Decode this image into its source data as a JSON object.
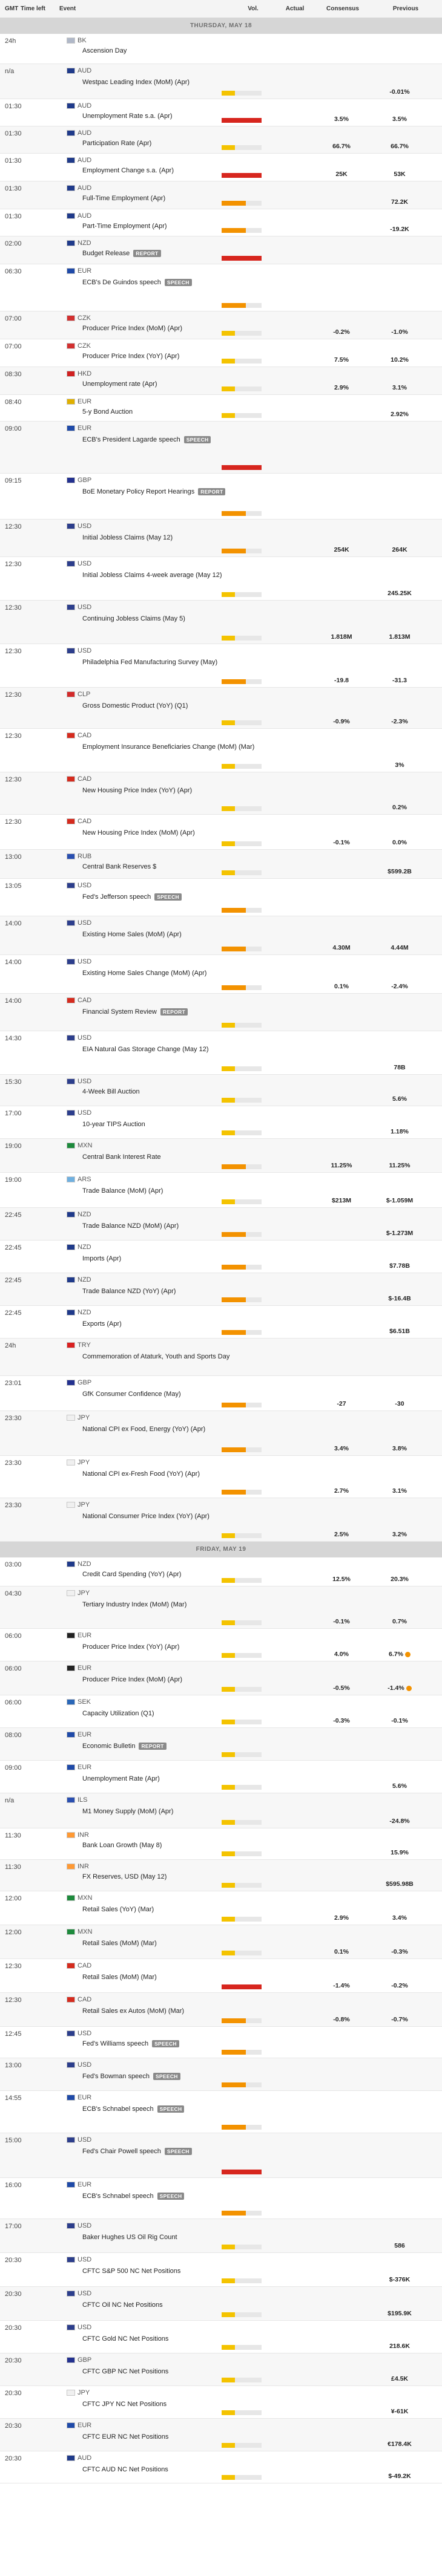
{
  "header": {
    "gmt": "GMT",
    "time_left": "Time left",
    "event": "Event",
    "vol": "Vol.",
    "actual": "Actual",
    "consensus": "Consensus",
    "previous": "Previous"
  },
  "rows": [
    {
      "type": "day",
      "label": "THURSDAY, MAY 18"
    },
    {
      "type": "event",
      "h": 50,
      "time": "24h",
      "cur": "BK",
      "flag": "#b0b8c8",
      "event": "Ascension Day",
      "vol": "none",
      "actual": "",
      "cons": "",
      "prev": ""
    },
    {
      "type": "event",
      "h": 58,
      "time": "n/a",
      "cur": "AUD",
      "flag": "#1f3a8a",
      "event": "Westpac Leading Index (MoM) (Apr)",
      "vol": "low",
      "actual": "",
      "cons": "",
      "prev": "-0.01%"
    },
    {
      "type": "event",
      "h": 45,
      "time": "01:30",
      "cur": "AUD",
      "flag": "#1f3a8a",
      "event": "Unemployment Rate s.a. (Apr)",
      "vol": "high",
      "actual": "",
      "cons": "3.5%",
      "prev": "3.5%"
    },
    {
      "type": "event",
      "h": 45,
      "time": "01:30",
      "cur": "AUD",
      "flag": "#1f3a8a",
      "event": "Participation Rate (Apr)",
      "vol": "low",
      "actual": "",
      "cons": "66.7%",
      "prev": "66.7%"
    },
    {
      "type": "event",
      "h": 46,
      "time": "01:30",
      "cur": "AUD",
      "flag": "#1f3a8a",
      "event": "Employment Change s.a. (Apr)",
      "vol": "high",
      "actual": "",
      "cons": "25K",
      "prev": "53K"
    },
    {
      "type": "event",
      "h": 46,
      "time": "01:30",
      "cur": "AUD",
      "flag": "#1f3a8a",
      "event": "Full-Time Employment (Apr)",
      "vol": "med",
      "actual": "",
      "cons": "",
      "prev": "72.2K"
    },
    {
      "type": "event",
      "h": 45,
      "time": "01:30",
      "cur": "AUD",
      "flag": "#1f3a8a",
      "event": "Part-Time Employment (Apr)",
      "vol": "med",
      "actual": "",
      "cons": "",
      "prev": "-19.2K"
    },
    {
      "type": "event",
      "h": 46,
      "time": "02:00",
      "cur": "NZD",
      "flag": "#1f3a8a",
      "event": "Budget Release",
      "badge": "REPORT",
      "vol": "high",
      "actual": "",
      "cons": "",
      "prev": ""
    },
    {
      "type": "event",
      "h": 78,
      "time": "06:30",
      "cur": "EUR",
      "flag": "#1f4aa8",
      "event": "ECB's De Guindos speech",
      "badge": "SPEECH",
      "vol": "med",
      "actual": "",
      "cons": "",
      "prev": ""
    },
    {
      "type": "event",
      "h": 46,
      "time": "07:00",
      "cur": "CZK",
      "flag": "#d23030",
      "event": "Producer Price Index (MoM) (Apr)",
      "vol": "low",
      "actual": "",
      "cons": "-0.2%",
      "prev": "-1.0%"
    },
    {
      "type": "event",
      "h": 46,
      "time": "07:00",
      "cur": "CZK",
      "flag": "#d23030",
      "event": "Producer Price Index (YoY) (Apr)",
      "vol": "low",
      "actual": "",
      "cons": "7.5%",
      "prev": "10.2%"
    },
    {
      "type": "event",
      "h": 46,
      "time": "08:30",
      "cur": "HKD",
      "flag": "#d02020",
      "event": "Unemployment rate (Apr)",
      "vol": "low",
      "actual": "",
      "cons": "2.9%",
      "prev": "3.1%"
    },
    {
      "type": "event",
      "h": 44,
      "time": "08:40",
      "cur": "EUR",
      "flag": "#e0b000",
      "event": "5-y Bond Auction",
      "vol": "low",
      "actual": "",
      "cons": "",
      "prev": "2.92%"
    },
    {
      "type": "event",
      "h": 86,
      "time": "09:00",
      "cur": "EUR",
      "flag": "#1f4aa8",
      "event": "ECB's President Lagarde speech",
      "badge": "SPEECH",
      "vol": "high",
      "actual": "",
      "cons": "",
      "prev": ""
    },
    {
      "type": "event",
      "h": 76,
      "time": "09:15",
      "cur": "GBP",
      "flag": "#23318f",
      "event": "BoE Monetary Policy Report Hearings",
      "badge": "REPORT",
      "vol": "med",
      "actual": "",
      "cons": "",
      "prev": ""
    },
    {
      "type": "event",
      "h": 62,
      "time": "12:30",
      "cur": "USD",
      "flag": "#2c3e8c",
      "event": "Initial Jobless Claims (May 12)",
      "vol": "med",
      "actual": "",
      "cons": "254K",
      "prev": "264K"
    },
    {
      "type": "event",
      "h": 72,
      "time": "12:30",
      "cur": "USD",
      "flag": "#2c3e8c",
      "event": "Initial Jobless Claims 4-week average (May 12)",
      "vol": "low",
      "actual": "",
      "cons": "",
      "prev": "245.25K"
    },
    {
      "type": "event",
      "h": 72,
      "time": "12:30",
      "cur": "USD",
      "flag": "#2c3e8c",
      "event": "Continuing Jobless Claims (May 5)",
      "vol": "low",
      "actual": "",
      "cons": "1.818M",
      "prev": "1.813M"
    },
    {
      "type": "event",
      "h": 72,
      "time": "12:30",
      "cur": "USD",
      "flag": "#2c3e8c",
      "event": "Philadelphia Fed Manufacturing Survey (May)",
      "vol": "med",
      "actual": "",
      "cons": "-19.8",
      "prev": "-31.3"
    },
    {
      "type": "event",
      "h": 68,
      "time": "12:30",
      "cur": "CLP",
      "flag": "#d32b2b",
      "event": "Gross Domestic Product (YoY) (Q1)",
      "vol": "low",
      "actual": "",
      "cons": "-0.9%",
      "prev": "-2.3%"
    },
    {
      "type": "event",
      "h": 72,
      "time": "12:30",
      "cur": "CAD",
      "flag": "#d52b1e",
      "event": "Employment Insurance Beneficiaries Change (MoM) (Mar)",
      "vol": "low",
      "actual": "",
      "cons": "",
      "prev": "3%"
    },
    {
      "type": "event",
      "h": 70,
      "time": "12:30",
      "cur": "CAD",
      "flag": "#d52b1e",
      "event": "New Housing Price Index (YoY) (Apr)",
      "vol": "low",
      "actual": "",
      "cons": "",
      "prev": "0.2%"
    },
    {
      "type": "event",
      "h": 58,
      "time": "12:30",
      "cur": "CAD",
      "flag": "#d52b1e",
      "event": "New Housing Price Index (MoM) (Apr)",
      "vol": "low",
      "actual": "",
      "cons": "-0.1%",
      "prev": "0.0%"
    },
    {
      "type": "event",
      "h": 48,
      "time": "13:00",
      "cur": "RUB",
      "flag": "#2a4fb0",
      "event": "Central Bank Reserves $",
      "vol": "low",
      "actual": "",
      "cons": "",
      "prev": "$599.2B"
    },
    {
      "type": "event",
      "h": 62,
      "time": "13:05",
      "cur": "USD",
      "flag": "#2c3e8c",
      "event": "Fed's Jefferson speech",
      "badge": "SPEECH",
      "vol": "med",
      "actual": "",
      "cons": "",
      "prev": ""
    },
    {
      "type": "event",
      "h": 64,
      "time": "14:00",
      "cur": "USD",
      "flag": "#2c3e8c",
      "event": "Existing Home Sales (MoM) (Apr)",
      "vol": "med",
      "actual": "",
      "cons": "4.30M",
      "prev": "4.44M"
    },
    {
      "type": "event",
      "h": 64,
      "time": "14:00",
      "cur": "USD",
      "flag": "#2c3e8c",
      "event": "Existing Home Sales Change (MoM) (Apr)",
      "vol": "med",
      "actual": "",
      "cons": "0.1%",
      "prev": "-2.4%"
    },
    {
      "type": "event",
      "h": 62,
      "time": "14:00",
      "cur": "CAD",
      "flag": "#d52b1e",
      "event": "Financial System Review",
      "badge": "REPORT",
      "vol": "low",
      "actual": "",
      "cons": "",
      "prev": ""
    },
    {
      "type": "event",
      "h": 72,
      "time": "14:30",
      "cur": "USD",
      "flag": "#2c3e8c",
      "event": "EIA Natural Gas Storage Change (May 12)",
      "vol": "low",
      "actual": "",
      "cons": "",
      "prev": "78B"
    },
    {
      "type": "event",
      "h": 52,
      "time": "15:30",
      "cur": "USD",
      "flag": "#2c3e8c",
      "event": "4-Week Bill Auction",
      "vol": "low",
      "actual": "",
      "cons": "",
      "prev": "5.6%"
    },
    {
      "type": "event",
      "h": 54,
      "time": "17:00",
      "cur": "USD",
      "flag": "#2c3e8c",
      "event": "10-year TIPS Auction",
      "vol": "low",
      "actual": "",
      "cons": "",
      "prev": "1.18%"
    },
    {
      "type": "event",
      "h": 56,
      "time": "19:00",
      "cur": "MXN",
      "flag": "#1d8a3c",
      "event": "Central Bank Interest Rate",
      "vol": "med",
      "actual": "",
      "cons": "11.25%",
      "prev": "11.25%"
    },
    {
      "type": "event",
      "h": 58,
      "time": "19:00",
      "cur": "ARS",
      "flag": "#6fb0e0",
      "event": "Trade Balance (MoM) (Apr)",
      "vol": "low",
      "actual": "",
      "cons": "$213M",
      "prev": "$-1.059M"
    },
    {
      "type": "event",
      "h": 54,
      "time": "22:45",
      "cur": "NZD",
      "flag": "#1f3a8a",
      "event": "Trade Balance NZD (MoM) (Apr)",
      "vol": "med",
      "actual": "",
      "cons": "",
      "prev": "$-1.273M"
    },
    {
      "type": "event",
      "h": 54,
      "time": "22:45",
      "cur": "NZD",
      "flag": "#1f3a8a",
      "event": "Imports (Apr)",
      "vol": "med",
      "actual": "",
      "cons": "",
      "prev": "$7.78B"
    },
    {
      "type": "event",
      "h": 54,
      "time": "22:45",
      "cur": "NZD",
      "flag": "#1f3a8a",
      "event": "Trade Balance NZD (YoY) (Apr)",
      "vol": "med",
      "actual": "",
      "cons": "",
      "prev": "$-16.4B"
    },
    {
      "type": "event",
      "h": 54,
      "time": "22:45",
      "cur": "NZD",
      "flag": "#1f3a8a",
      "event": "Exports (Apr)",
      "vol": "med",
      "actual": "",
      "cons": "",
      "prev": "$6.51B"
    },
    {
      "type": "event",
      "h": 62,
      "time": "24h",
      "cur": "TRY",
      "flag": "#d92020",
      "event": "Commemoration of Ataturk, Youth and Sports Day",
      "vol": "none",
      "actual": "",
      "cons": "",
      "prev": ""
    },
    {
      "type": "event",
      "h": 58,
      "time": "23:01",
      "cur": "GBP",
      "flag": "#23318f",
      "event": "GfK Consumer Confidence (May)",
      "vol": "med",
      "actual": "",
      "cons": "-27",
      "prev": "-30"
    },
    {
      "type": "event",
      "h": 74,
      "time": "23:30",
      "cur": "JPY",
      "flag": "#f0f0f0",
      "event": "National CPI ex Food, Energy (YoY) (Apr)",
      "vol": "med",
      "actual": "",
      "cons": "3.4%",
      "prev": "3.8%"
    },
    {
      "type": "event",
      "h": 70,
      "time": "23:30",
      "cur": "JPY",
      "flag": "#f0f0f0",
      "event": "National CPI ex-Fresh Food (YoY) (Apr)",
      "vol": "med",
      "actual": "",
      "cons": "2.7%",
      "prev": "3.1%"
    },
    {
      "type": "event",
      "h": 72,
      "time": "23:30",
      "cur": "JPY",
      "flag": "#f0f0f0",
      "event": "National Consumer Price Index (YoY) (Apr)",
      "vol": "low",
      "actual": "",
      "cons": "2.5%",
      "prev": "3.2%"
    },
    {
      "type": "day",
      "label": "FRIDAY, MAY 19"
    },
    {
      "type": "event",
      "h": 48,
      "time": "03:00",
      "cur": "NZD",
      "flag": "#1f3a8a",
      "event": "Credit Card Spending (YoY) (Apr)",
      "vol": "low",
      "actual": "",
      "cons": "12.5%",
      "prev": "20.3%"
    },
    {
      "type": "event",
      "h": 70,
      "time": "04:30",
      "cur": "JPY",
      "flag": "#f0f0f0",
      "event": "Tertiary Industry Index (MoM) (Mar)",
      "vol": "low",
      "actual": "",
      "cons": "-0.1%",
      "prev": "0.7%"
    },
    {
      "type": "event",
      "h": 54,
      "time": "06:00",
      "cur": "EUR",
      "flag": "#222222",
      "event": "Producer Price Index (YoY) (Apr)",
      "vol": "low",
      "actual": "",
      "cons": "4.0%",
      "prev": "6.7%",
      "rev": true
    },
    {
      "type": "event",
      "h": 56,
      "time": "06:00",
      "cur": "EUR",
      "flag": "#222222",
      "event": "Producer Price Index (MoM) (Apr)",
      "vol": "low",
      "actual": "",
      "cons": "-0.5%",
      "prev": "-1.4%",
      "rev": true
    },
    {
      "type": "event",
      "h": 54,
      "time": "06:00",
      "cur": "SEK",
      "flag": "#2a67b8",
      "event": "Capacity Utilization (Q1)",
      "vol": "low",
      "actual": "",
      "cons": "-0.3%",
      "prev": "-0.1%"
    },
    {
      "type": "event",
      "h": 54,
      "time": "08:00",
      "cur": "EUR",
      "flag": "#1f4aa8",
      "event": "Economic Bulletin",
      "badge": "REPORT",
      "vol": "low",
      "actual": "",
      "cons": "",
      "prev": ""
    },
    {
      "type": "event",
      "h": 54,
      "time": "09:00",
      "cur": "EUR",
      "flag": "#1f4aa8",
      "event": "Unemployment Rate (Apr)",
      "vol": "low",
      "actual": "",
      "cons": "",
      "prev": "5.6%"
    },
    {
      "type": "event",
      "h": 58,
      "time": "n/a",
      "cur": "ILS",
      "flag": "#2a4fb0",
      "event": "M1 Money Supply (MoM) (Apr)",
      "vol": "low",
      "actual": "",
      "cons": "",
      "prev": "-24.8%"
    },
    {
      "type": "event",
      "h": 52,
      "time": "11:30",
      "cur": "INR",
      "flag": "#ff9933",
      "event": "Bank Loan Growth (May 8)",
      "vol": "low",
      "actual": "",
      "cons": "",
      "prev": "15.9%"
    },
    {
      "type": "event",
      "h": 52,
      "time": "11:30",
      "cur": "INR",
      "flag": "#ff9933",
      "event": "FX Reserves, USD (May 12)",
      "vol": "low",
      "actual": "",
      "cons": "",
      "prev": "$595.98B"
    },
    {
      "type": "event",
      "h": 56,
      "time": "12:00",
      "cur": "MXN",
      "flag": "#1d8a3c",
      "event": "Retail Sales (YoY) (Mar)",
      "vol": "low",
      "actual": "",
      "cons": "2.9%",
      "prev": "3.4%"
    },
    {
      "type": "event",
      "h": 56,
      "time": "12:00",
      "cur": "MXN",
      "flag": "#1d8a3c",
      "event": "Retail Sales (MoM) (Mar)",
      "vol": "low",
      "actual": "",
      "cons": "0.1%",
      "prev": "-0.3%"
    },
    {
      "type": "event",
      "h": 56,
      "time": "12:30",
      "cur": "CAD",
      "flag": "#d52b1e",
      "event": "Retail Sales (MoM) (Mar)",
      "vol": "high",
      "actual": "",
      "cons": "-1.4%",
      "prev": "-0.2%"
    },
    {
      "type": "event",
      "h": 56,
      "time": "12:30",
      "cur": "CAD",
      "flag": "#d52b1e",
      "event": "Retail Sales ex Autos (MoM) (Mar)",
      "vol": "med",
      "actual": "",
      "cons": "-0.8%",
      "prev": "-0.7%"
    },
    {
      "type": "event",
      "h": 52,
      "time": "12:45",
      "cur": "USD",
      "flag": "#2c3e8c",
      "event": "Fed's Williams speech",
      "badge": "SPEECH",
      "vol": "med",
      "actual": "",
      "cons": "",
      "prev": ""
    },
    {
      "type": "event",
      "h": 54,
      "time": "13:00",
      "cur": "USD",
      "flag": "#2c3e8c",
      "event": "Fed's Bowman speech",
      "badge": "SPEECH",
      "vol": "med",
      "actual": "",
      "cons": "",
      "prev": ""
    },
    {
      "type": "event",
      "h": 70,
      "time": "14:55",
      "cur": "EUR",
      "flag": "#1f4aa8",
      "event": "ECB's Schnabel speech",
      "badge": "SPEECH",
      "vol": "med",
      "actual": "",
      "cons": "",
      "prev": ""
    },
    {
      "type": "event",
      "h": 74,
      "time": "15:00",
      "cur": "USD",
      "flag": "#2c3e8c",
      "event": "Fed's Chair Powell speech",
      "badge": "SPEECH",
      "vol": "high",
      "actual": "",
      "cons": "",
      "prev": ""
    },
    {
      "type": "event",
      "h": 68,
      "time": "16:00",
      "cur": "EUR",
      "flag": "#1f4aa8",
      "event": "ECB's Schnabel speech",
      "badge": "SPEECH",
      "vol": "med",
      "actual": "",
      "cons": "",
      "prev": ""
    },
    {
      "type": "event",
      "h": 56,
      "time": "17:00",
      "cur": "USD",
      "flag": "#2c3e8c",
      "event": "Baker Hughes US Oil Rig Count",
      "vol": "low",
      "actual": "",
      "cons": "",
      "prev": "586"
    },
    {
      "type": "event",
      "h": 56,
      "time": "20:30",
      "cur": "USD",
      "flag": "#2c3e8c",
      "event": "CFTC S&P 500 NC Net Positions",
      "vol": "low",
      "actual": "",
      "cons": "",
      "prev": "$-376K"
    },
    {
      "type": "event",
      "h": 56,
      "time": "20:30",
      "cur": "USD",
      "flag": "#2c3e8c",
      "event": "CFTC Oil NC Net Positions",
      "vol": "low",
      "actual": "",
      "cons": "",
      "prev": "$195.9K"
    },
    {
      "type": "event",
      "h": 54,
      "time": "20:30",
      "cur": "USD",
      "flag": "#2c3e8c",
      "event": "CFTC Gold NC Net Positions",
      "vol": "low",
      "actual": "",
      "cons": "",
      "prev": "218.6K"
    },
    {
      "type": "event",
      "h": 54,
      "time": "20:30",
      "cur": "GBP",
      "flag": "#23318f",
      "event": "CFTC GBP NC Net Positions",
      "vol": "low",
      "actual": "",
      "cons": "",
      "prev": "£4.5K"
    },
    {
      "type": "event",
      "h": 54,
      "time": "20:30",
      "cur": "JPY",
      "flag": "#f0f0f0",
      "event": "CFTC JPY NC Net Positions",
      "vol": "low",
      "actual": "",
      "cons": "",
      "prev": "¥-61K"
    },
    {
      "type": "event",
      "h": 54,
      "time": "20:30",
      "cur": "EUR",
      "flag": "#1f4aa8",
      "event": "CFTC EUR NC Net Positions",
      "vol": "low",
      "actual": "",
      "cons": "",
      "prev": "€178.4K"
    },
    {
      "type": "event",
      "h": 53,
      "time": "20:30",
      "cur": "AUD",
      "flag": "#1f3a8a",
      "event": "CFTC AUD NC Net Positions",
      "vol": "low",
      "actual": "",
      "cons": "",
      "prev": "$-49.2K"
    }
  ]
}
